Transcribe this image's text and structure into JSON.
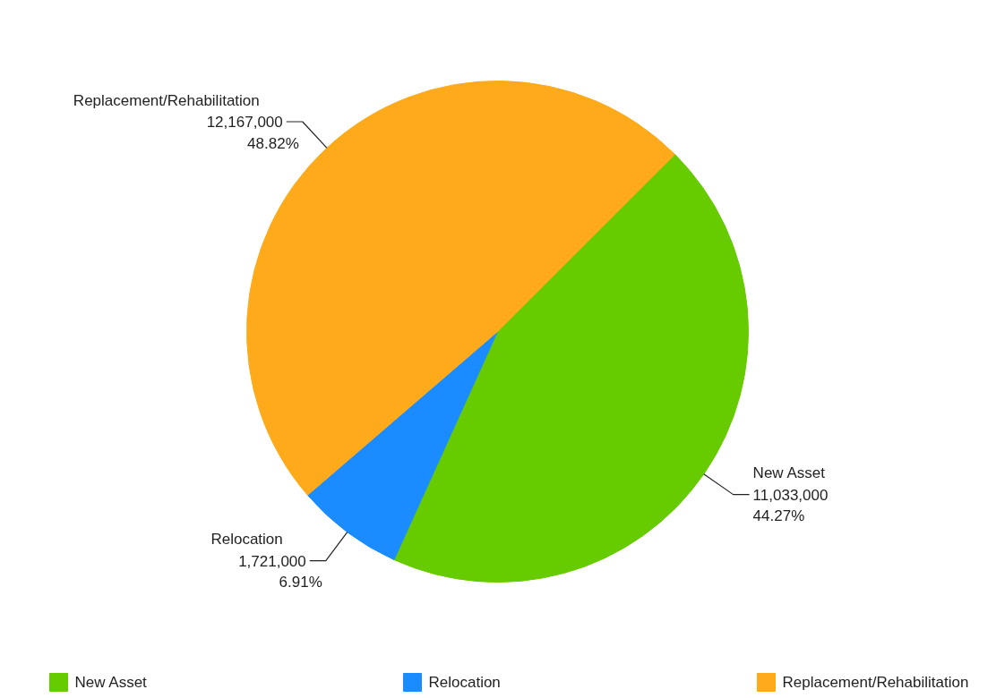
{
  "chart_data": {
    "type": "pie",
    "categories": [
      "New Asset",
      "Relocation",
      "Replacement/Rehabilitation"
    ],
    "values": [
      11033000,
      1721000,
      12167000
    ],
    "colors": [
      "#66cc00",
      "#1a8cff",
      "#ffaa1a"
    ],
    "value_labels": [
      "11,033,000\n44.27%",
      "1,721,000\n6.91%",
      "12,167,000\n48.82%"
    ],
    "legend": "bottom"
  }
}
